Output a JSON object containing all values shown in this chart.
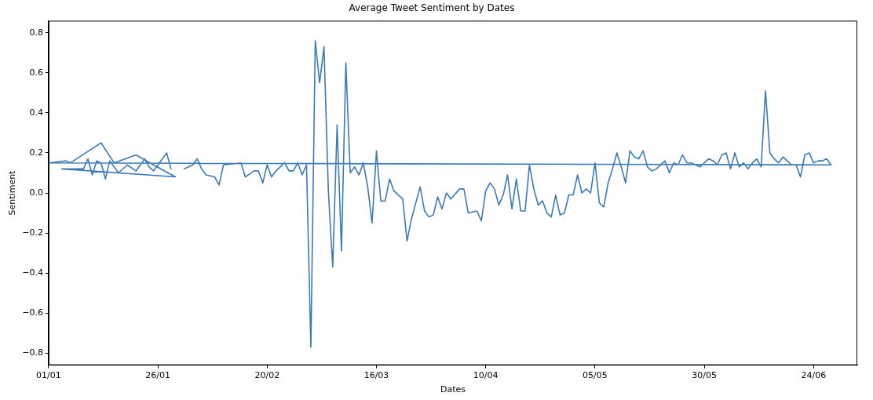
{
  "chart_data": {
    "type": "line",
    "title": "Average Tweet Sentiment by Dates",
    "xlabel": "Dates",
    "ylabel": "Sentiment",
    "xlim": [
      "--01-01",
      "--07-04"
    ],
    "xticks": [
      {
        "value": "--01-01",
        "label": "01/01"
      },
      {
        "value": "--01-26",
        "label": "26/01"
      },
      {
        "value": "--02-20",
        "label": "20/02"
      },
      {
        "value": "--03-16",
        "label": "16/03"
      },
      {
        "value": "--04-10",
        "label": "10/04"
      },
      {
        "value": "--05-05",
        "label": "05/05"
      },
      {
        "value": "--05-30",
        "label": "30/05"
      },
      {
        "value": "--06-24",
        "label": "24/06"
      }
    ],
    "ylim": [
      -0.86,
      0.86
    ],
    "yticks": [
      {
        "value": -0.8,
        "label": "−0.8"
      },
      {
        "value": -0.6,
        "label": "−0.6"
      },
      {
        "value": -0.4,
        "label": "−0.4"
      },
      {
        "value": -0.2,
        "label": "−0.2"
      },
      {
        "value": 0,
        "label": "0.0"
      },
      {
        "value": 0.2,
        "label": "0.2"
      },
      {
        "value": 0.4,
        "label": "0.4"
      },
      {
        "value": 0.6,
        "label": "0.6"
      },
      {
        "value": 0.8,
        "label": "0.8"
      }
    ],
    "grid": false,
    "legend": false,
    "marker": "none",
    "line_style": "solid",
    "series": [
      {
        "color": "#3a7ab8",
        "x": [
          "--02-01",
          "--02-02",
          "--02-03",
          "--02-04",
          "--02-05",
          "--02-06",
          "--02-08",
          "--02-09",
          "--02-10",
          "--02-14",
          "--02-15",
          "--02-17",
          "--02-18",
          "--02-19",
          "--02-20",
          "--02-21",
          "--02-22",
          "--02-24",
          "--02-25",
          "--02-26",
          "--02-27",
          "--02-28",
          "--02-29",
          "--03-01",
          "--03-02",
          "--03-03",
          "--03-04",
          "--03-05",
          "--03-06",
          "--03-07",
          "--03-08",
          "--03-09",
          "--03-10",
          "--03-11",
          "--03-12",
          "--03-13",
          "--03-14",
          "--03-15",
          "--03-16",
          "--03-17",
          "--03-18",
          "--03-19",
          "--03-20",
          "--03-21",
          "--03-22",
          "--03-23",
          "--03-24",
          "--03-26",
          "--03-27",
          "--03-28",
          "--03-29",
          "--03-30",
          "--03-31",
          "--04-01",
          "--04-02",
          "--04-04",
          "--04-05",
          "--04-06",
          "--04-08",
          "--04-09",
          "--04-10",
          "--04-11",
          "--04-12",
          "--04-13",
          "--04-14",
          "--04-15",
          "--04-16",
          "--04-17",
          "--04-18",
          "--04-19",
          "--04-20",
          "--04-21",
          "--04-22",
          "--04-23",
          "--04-24",
          "--04-25",
          "--04-26",
          "--04-27",
          "--04-28",
          "--04-29",
          "--04-30",
          "--05-01",
          "--05-02",
          "--05-03",
          "--05-04",
          "--05-05",
          "--05-06",
          "--05-07",
          "--05-08",
          "--05-09",
          "--05-10",
          "--05-11",
          "--05-12",
          "--05-13",
          "--05-14",
          "--05-15",
          "--05-16",
          "--05-17",
          "--05-18",
          "--05-19",
          "--05-21",
          "--05-22",
          "--05-23",
          "--05-24",
          "--05-25",
          "--05-26",
          "--05-27",
          "--05-28",
          "--05-29",
          "--05-30",
          "--05-31",
          "--06-01",
          "--06-02",
          "--06-03",
          "--06-04",
          "--06-05",
          "--06-06",
          "--06-07",
          "--06-08",
          "--06-09",
          "--06-10",
          "--06-11",
          "--06-12",
          "--06-13",
          "--06-14",
          "--06-15",
          "--06-16",
          "--06-17",
          "--06-18",
          "--06-19",
          "--06-20",
          "--06-21",
          "--06-22",
          "--06-23",
          "--06-24",
          "--06-25",
          "--06-26",
          "--06-27",
          "--06-28",
          "--01-01",
          "--01-05",
          "--01-06",
          "--01-13",
          "--01-16",
          "--01-21",
          "--01-25",
          "--01-30",
          "--01-04",
          "--01-09",
          "--01-10",
          "--01-11",
          "--01-12",
          "--01-13",
          "--01-14",
          "--01-15",
          "--01-17",
          "--01-19",
          "--01-21",
          "--01-23",
          "--01-24",
          "--01-25",
          "--01-28",
          "--01-29"
        ],
        "values": [
          0.12,
          0.13,
          0.14,
          0.17,
          0.12,
          0.09,
          0.08,
          0.04,
          0.14,
          0.15,
          0.08,
          0.11,
          0.11,
          0.05,
          0.14,
          0.08,
          0.11,
          0.15,
          0.11,
          0.11,
          0.15,
          0.09,
          0.14,
          -0.77,
          0.76,
          0.55,
          0.73,
          0.01,
          -0.37,
          0.34,
          -0.29,
          0.65,
          0.1,
          0.13,
          0.09,
          0.15,
          0.03,
          -0.15,
          0.21,
          -0.04,
          -0.04,
          0.07,
          0.01,
          -0.01,
          -0.03,
          -0.24,
          -0.13,
          0.03,
          -0.09,
          -0.12,
          -0.11,
          -0.02,
          -0.08,
          0,
          -0.03,
          0.02,
          0.02,
          -0.1,
          -0.09,
          -0.14,
          0.01,
          0.05,
          0.02,
          -0.06,
          -0.01,
          0.09,
          -0.08,
          0.07,
          -0.09,
          -0.09,
          0.14,
          0.02,
          -0.06,
          -0.04,
          -0.1,
          -0.12,
          -0.01,
          -0.11,
          -0.1,
          -0.01,
          -0.01,
          0.09,
          0,
          0.02,
          0,
          0.15,
          -0.05,
          -0.07,
          0.05,
          0.12,
          0.2,
          0.13,
          0.05,
          0.21,
          0.18,
          0.17,
          0.21,
          0.13,
          0.11,
          0.12,
          0.16,
          0.1,
          0.15,
          0.14,
          0.19,
          0.15,
          0.15,
          0.14,
          0.13,
          0.15,
          0.17,
          0.16,
          0.14,
          0.19,
          0.2,
          0.12,
          0.2,
          0.13,
          0.15,
          0.12,
          0.15,
          0.17,
          0.13,
          0.51,
          0.2,
          0.17,
          0.15,
          0.18,
          0.16,
          0.14,
          0.14,
          0.08,
          0.19,
          0.2,
          0.15,
          0.16,
          0.16,
          0.17,
          0.14,
          0.15,
          0.16,
          0.15,
          0.25,
          0.15,
          0.19,
          0.14,
          0.08,
          0.12,
          0.12,
          0.17,
          0.09,
          0.16,
          0.15,
          0.07,
          0.16,
          0.1,
          0.14,
          0.11,
          0.17,
          0.13,
          0.11,
          0.2,
          0.12
        ]
      }
    ]
  }
}
